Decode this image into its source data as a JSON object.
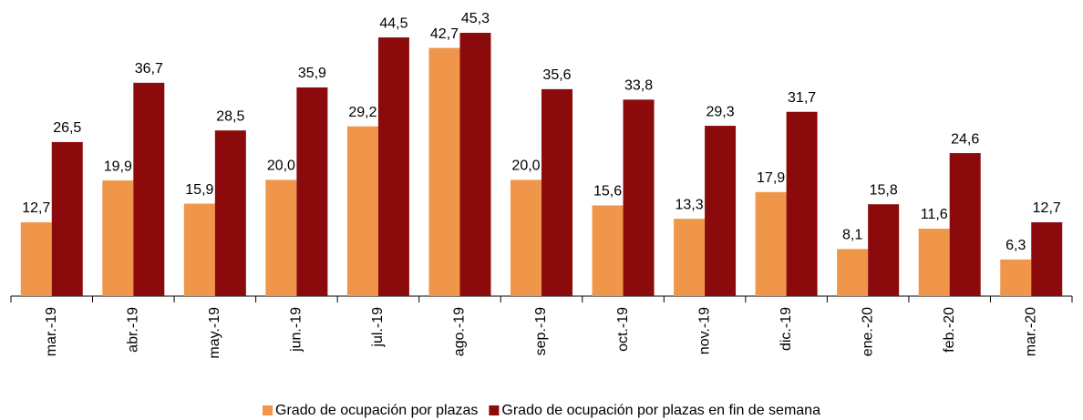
{
  "chart_data": {
    "type": "bar",
    "categories": [
      "mar.-19",
      "abr.-19",
      "may.-19",
      "jun.-19",
      "jul.-19",
      "ago.-19",
      "sep.-19",
      "oct.-19",
      "nov.-19",
      "dic.-19",
      "ene.-20",
      "feb.-20",
      "mar.-20"
    ],
    "series": [
      {
        "name": "Grado de ocupación por plazas",
        "color": "#f0964a",
        "values": [
          12.7,
          19.9,
          15.9,
          20.0,
          29.2,
          42.7,
          20.0,
          15.6,
          13.3,
          17.9,
          8.1,
          11.6,
          6.3
        ],
        "value_labels": [
          "12,7",
          "19,9",
          "15,9",
          "20,0",
          "29,2",
          "42,7",
          "20,0",
          "15,6",
          "13,3",
          "17,9",
          "8,1",
          "11,6",
          "6,3"
        ]
      },
      {
        "name": "Grado de ocupación por plazas en fin de semana",
        "color": "#8b0a0c",
        "values": [
          26.5,
          36.7,
          28.5,
          35.9,
          44.5,
          45.3,
          35.6,
          33.8,
          29.3,
          31.7,
          15.8,
          24.6,
          12.7
        ],
        "value_labels": [
          "26,5",
          "36,7",
          "28,5",
          "35,9",
          "44,5",
          "45,3",
          "35,6",
          "33,8",
          "29,3",
          "31,7",
          "15,8",
          "24,6",
          "12,7"
        ]
      }
    ],
    "legend": "bottom"
  }
}
